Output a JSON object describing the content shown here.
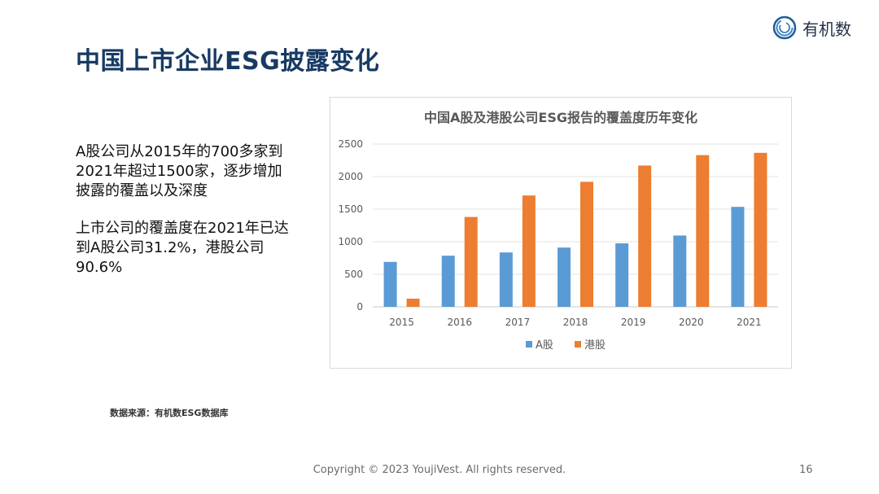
{
  "slide": {
    "title": "中国上市企业ESG披露变化",
    "logo_text": "有机数",
    "paragraph1": "A股公司从2015年的700多家到2021年超过1500家，逐步增加披露的覆盖以及深度",
    "paragraph2": "上市公司的覆盖度在2021年已达到A股公司31.2%，港股公司90.6%",
    "source": "数据来源：有机数ESG数据库",
    "copyright": "Copyright © 2023 YoujiVest. All rights reserved.",
    "page_number": "16"
  },
  "colors": {
    "title": "#173a63",
    "a_share": "#5b9bd5",
    "hk_share": "#ed7d31",
    "grid": "#e3e3e3",
    "axis_text": "#595959"
  },
  "chart_data": {
    "type": "bar",
    "title": "中国A股及港股公司ESG报告的覆盖度历年变化",
    "categories": [
      "2015",
      "2016",
      "2017",
      "2018",
      "2019",
      "2020",
      "2021"
    ],
    "series": [
      {
        "name": "A股",
        "color": "#5b9bd5",
        "values": [
          690,
          785,
          835,
          910,
          975,
          1095,
          1535
        ]
      },
      {
        "name": "港股",
        "color": "#ed7d31",
        "values": [
          125,
          1380,
          1710,
          1920,
          2170,
          2330,
          2365
        ]
      }
    ],
    "ylim": [
      0,
      2500
    ],
    "yticks": [
      0,
      500,
      1000,
      1500,
      2000,
      2500
    ],
    "xlabel": "",
    "ylabel": "",
    "grid": true,
    "legend": "bottom-center"
  }
}
